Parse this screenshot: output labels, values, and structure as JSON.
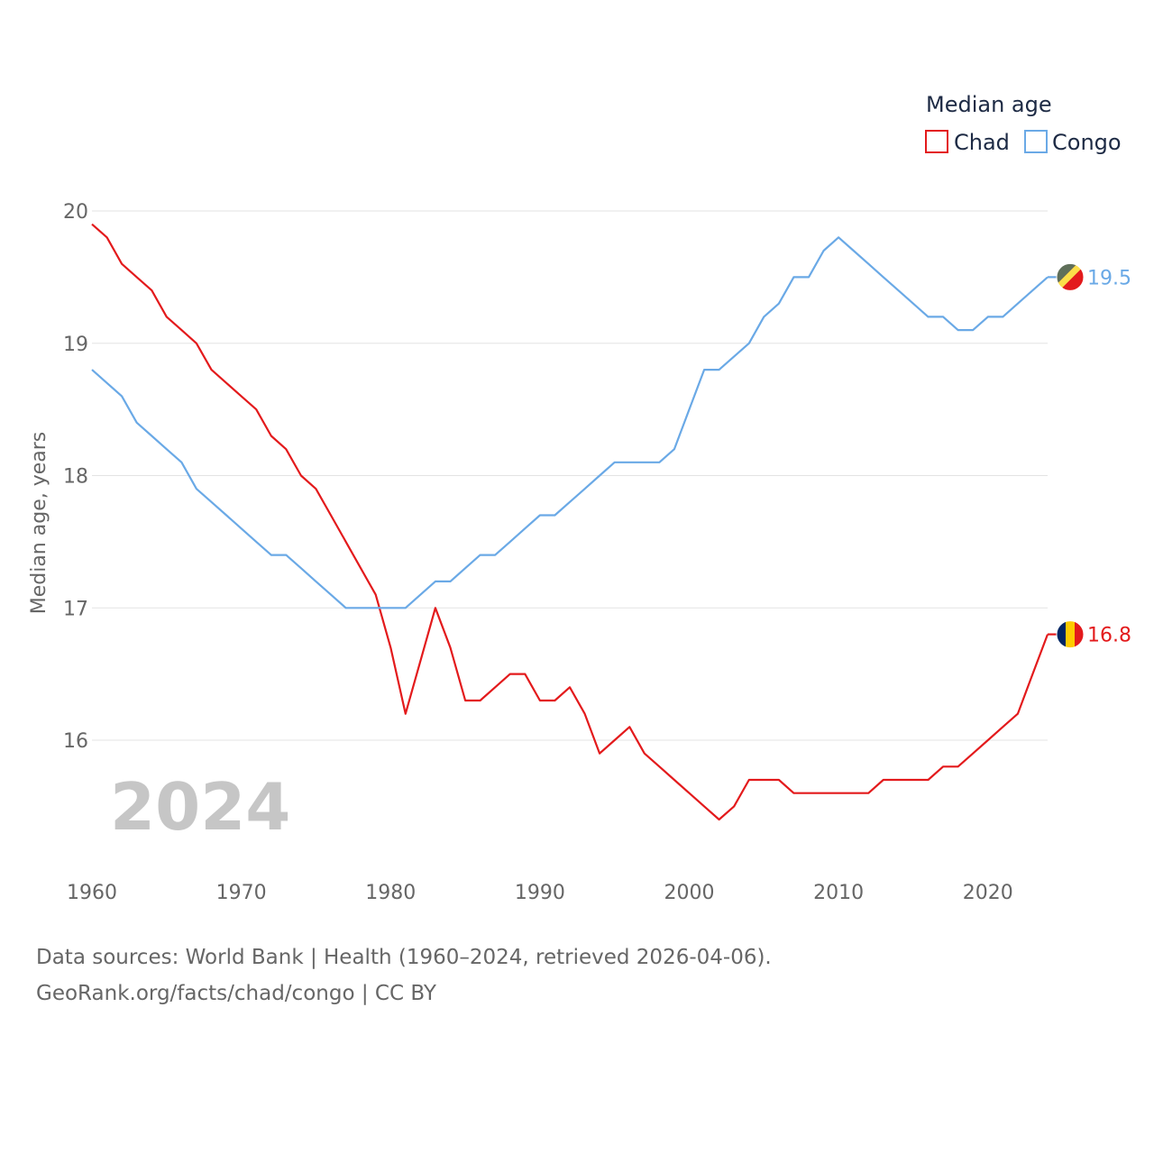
{
  "chart_data": {
    "type": "line",
    "title": "",
    "legend_title": "Median age",
    "ylabel": "Median age, years",
    "xlabel": "",
    "xlim": [
      1960,
      2024
    ],
    "ylim": [
      15.0,
      20.0
    ],
    "x_ticks": [
      1960,
      1970,
      1980,
      1990,
      2000,
      2010,
      2020
    ],
    "y_ticks": [
      16,
      17,
      18,
      19,
      20
    ],
    "grid": true,
    "legend_position": "top-right",
    "year_watermark": "2024",
    "x": [
      1960,
      1961,
      1962,
      1963,
      1964,
      1965,
      1966,
      1967,
      1968,
      1969,
      1970,
      1971,
      1972,
      1973,
      1974,
      1975,
      1976,
      1977,
      1978,
      1979,
      1980,
      1981,
      1982,
      1983,
      1984,
      1985,
      1986,
      1987,
      1988,
      1989,
      1990,
      1991,
      1992,
      1993,
      1994,
      1995,
      1996,
      1997,
      1998,
      1999,
      2000,
      2001,
      2002,
      2003,
      2004,
      2005,
      2006,
      2007,
      2008,
      2009,
      2010,
      2011,
      2012,
      2013,
      2014,
      2015,
      2016,
      2017,
      2018,
      2019,
      2020,
      2021,
      2022,
      2023,
      2024
    ],
    "series": [
      {
        "name": "Chad",
        "color": "#e31a1c",
        "end_label": "16.8",
        "values": [
          19.9,
          19.8,
          19.6,
          19.5,
          19.4,
          19.2,
          19.1,
          19.0,
          18.8,
          18.7,
          18.6,
          18.5,
          18.3,
          18.2,
          18.0,
          17.9,
          17.7,
          17.5,
          17.3,
          17.1,
          16.7,
          16.2,
          16.6,
          17.0,
          16.7,
          16.3,
          16.3,
          16.4,
          16.5,
          16.5,
          16.3,
          16.3,
          16.4,
          16.2,
          15.9,
          16.0,
          16.1,
          15.9,
          15.8,
          15.7,
          15.6,
          15.5,
          15.4,
          15.5,
          15.7,
          15.7,
          15.7,
          15.6,
          15.6,
          15.6,
          15.6,
          15.6,
          15.6,
          15.7,
          15.7,
          15.7,
          15.7,
          15.8,
          15.8,
          15.9,
          16.0,
          16.1,
          16.2,
          16.5,
          16.8
        ]
      },
      {
        "name": "Congo",
        "color": "#6aa9e6",
        "end_label": "19.5",
        "values": [
          18.8,
          18.7,
          18.6,
          18.4,
          18.3,
          18.2,
          18.1,
          17.9,
          17.8,
          17.7,
          17.6,
          17.5,
          17.4,
          17.4,
          17.3,
          17.2,
          17.1,
          17.0,
          17.0,
          17.0,
          17.0,
          17.0,
          17.1,
          17.2,
          17.2,
          17.3,
          17.4,
          17.4,
          17.5,
          17.6,
          17.7,
          17.7,
          17.8,
          17.9,
          18.0,
          18.1,
          18.1,
          18.1,
          18.1,
          18.2,
          18.5,
          18.8,
          18.8,
          18.9,
          19.0,
          19.2,
          19.3,
          19.5,
          19.5,
          19.7,
          19.8,
          19.7,
          19.6,
          19.5,
          19.4,
          19.3,
          19.2,
          19.2,
          19.1,
          19.1,
          19.2,
          19.2,
          19.3,
          19.4,
          19.5
        ]
      }
    ]
  },
  "sources": {
    "line1": "Data sources: World Bank | Health (1960–2024, retrieved 2026-04-06).",
    "line2": "GeoRank.org/facts/chad/congo | CC BY"
  }
}
